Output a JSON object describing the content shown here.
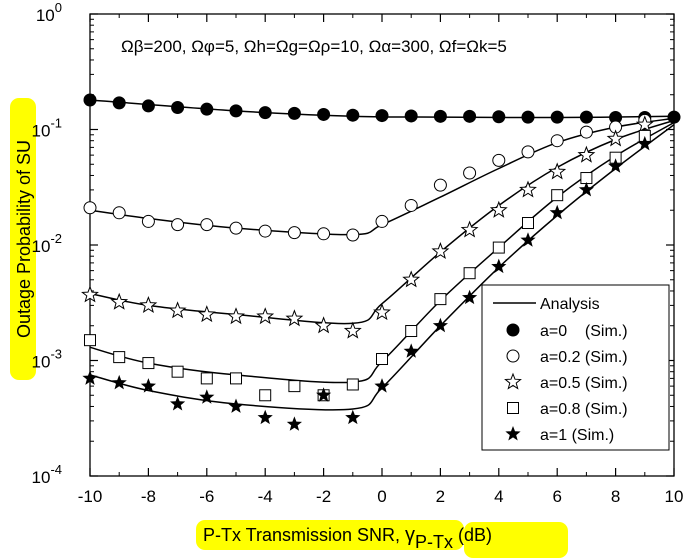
{
  "chart_data": {
    "type": "line",
    "x_ticks": [
      -10,
      -8,
      -6,
      -4,
      -2,
      0,
      2,
      4,
      6,
      8,
      10
    ],
    "y_ticks": [
      {
        "base": "10",
        "exp": "-4"
      },
      {
        "base": "10",
        "exp": "-3"
      },
      {
        "base": "10",
        "exp": "-2"
      },
      {
        "base": "10",
        "exp": "-1"
      },
      {
        "base": "10",
        "exp": "0"
      }
    ],
    "xlim": [
      -10,
      10
    ],
    "ylim": [
      0.0001,
      1
    ],
    "y_scale": "log",
    "xlabel": {
      "main": "P-Tx Transmission SNR, ",
      "symbol": "γ",
      "sub": "P-Tx",
      "unit": " (dB)"
    },
    "ylabel": "Outage Probability of SU",
    "annotation": "Ωβ=200, Ωφ=5, Ωh=Ωg=Ωρ=10, Ωα=300, Ωf=Ωk=5",
    "legend": {
      "position": "bottom-right",
      "analysis": "Analysis",
      "labels": [
        "a=0    (Sim.)",
        "a=0.2 (Sim.)",
        "a=0.5 (Sim.)",
        "a=0.8 (Sim.)",
        "a=1 (Sim.)"
      ]
    },
    "analysis_series": [
      {
        "name": "a=0",
        "x": [
          -10,
          -5,
          -1,
          2,
          6,
          10
        ],
        "y": [
          0.18,
          0.145,
          0.13,
          0.128,
          0.127,
          0.13
        ]
      },
      {
        "name": "a=0.2",
        "x": [
          -10,
          -8,
          -5,
          -1,
          0,
          2,
          4,
          6,
          8,
          10
        ],
        "y": [
          0.02,
          0.017,
          0.014,
          0.0123,
          0.015,
          0.026,
          0.046,
          0.077,
          0.105,
          0.125
        ]
      },
      {
        "name": "a=0.5",
        "x": [
          -10,
          -8,
          -5,
          -1,
          0,
          2,
          4,
          6,
          8,
          10
        ],
        "y": [
          0.0038,
          0.003,
          0.0025,
          0.0021,
          0.0031,
          0.0087,
          0.022,
          0.047,
          0.082,
          0.12
        ]
      },
      {
        "name": "a=0.8",
        "x": [
          -10,
          -8,
          -5,
          -1,
          0,
          2,
          4,
          6,
          8,
          10
        ],
        "y": [
          0.0013,
          0.00095,
          0.00075,
          0.00065,
          0.00098,
          0.0033,
          0.0095,
          0.026,
          0.059,
          0.115
        ]
      },
      {
        "name": "a=1",
        "x": [
          -10,
          -8,
          -5,
          -1,
          0,
          2,
          4,
          6,
          8,
          10
        ],
        "y": [
          0.00075,
          0.00055,
          0.00042,
          0.00038,
          0.00058,
          0.002,
          0.0064,
          0.018,
          0.046,
          0.11
        ]
      }
    ],
    "sim_series": [
      {
        "name": "a=0 (Sim.)",
        "marker": "filled-circle",
        "x": [
          -10,
          -9,
          -8,
          -7,
          -6,
          -5,
          -4,
          -3,
          -2,
          -1,
          0,
          1,
          2,
          3,
          4,
          5,
          6,
          7,
          8,
          9,
          10
        ],
        "y": [
          0.18,
          0.17,
          0.16,
          0.155,
          0.15,
          0.145,
          0.14,
          0.138,
          0.135,
          0.133,
          0.132,
          0.131,
          0.13,
          0.13,
          0.129,
          0.128,
          0.128,
          0.128,
          0.127,
          0.127,
          0.128
        ]
      },
      {
        "name": "a=0.2 (Sim.)",
        "marker": "open-circle",
        "x": [
          -10,
          -9,
          -8,
          -7,
          -6,
          -5,
          -4,
          -3,
          -2,
          -1,
          0,
          1,
          2,
          3,
          4,
          5,
          6,
          7,
          8,
          9
        ],
        "y": [
          0.021,
          0.019,
          0.016,
          0.015,
          0.015,
          0.014,
          0.0132,
          0.0128,
          0.0125,
          0.0122,
          0.016,
          0.022,
          0.033,
          0.042,
          0.054,
          0.064,
          0.08,
          0.095,
          0.105,
          0.12
        ]
      },
      {
        "name": "a=0.5 (Sim.)",
        "marker": "open-star",
        "x": [
          -10,
          -9,
          -8,
          -7,
          -6,
          -5,
          -4,
          -3,
          -2,
          -1,
          0,
          1,
          2,
          3,
          4,
          5,
          6,
          7,
          8,
          9
        ],
        "y": [
          0.0037,
          0.0032,
          0.003,
          0.0027,
          0.0025,
          0.0024,
          0.0024,
          0.0023,
          0.002,
          0.0018,
          0.0026,
          0.005,
          0.0088,
          0.0135,
          0.02,
          0.03,
          0.043,
          0.06,
          0.083,
          0.11
        ]
      },
      {
        "name": "a=0.8 (Sim.)",
        "marker": "open-square",
        "x": [
          -10,
          -9,
          -8,
          -7,
          -6,
          -5,
          -4,
          -3,
          -2,
          -1,
          0,
          1,
          2,
          3,
          4,
          5,
          6,
          7,
          8,
          9
        ],
        "y": [
          0.0015,
          0.00107,
          0.00095,
          0.0008,
          0.0007,
          0.0007,
          0.0005,
          0.0006,
          0.0005,
          0.00062,
          0.00103,
          0.0018,
          0.0034,
          0.0057,
          0.0095,
          0.0155,
          0.027,
          0.038,
          0.057,
          0.088
        ]
      },
      {
        "name": "a=1 (Sim.)",
        "marker": "filled-star",
        "x": [
          -10,
          -9,
          -8,
          -7,
          -6,
          -5,
          -4,
          -3,
          -2,
          -1,
          0,
          1,
          2,
          3,
          4,
          5,
          6,
          7,
          8,
          9
        ],
        "y": [
          0.0007,
          0.00064,
          0.0006,
          0.00042,
          0.00048,
          0.0004,
          0.00032,
          0.00028,
          0.0005,
          0.00032,
          0.0006,
          0.0012,
          0.002,
          0.0035,
          0.0065,
          0.011,
          0.019,
          0.03,
          0.048,
          0.075
        ]
      }
    ]
  }
}
